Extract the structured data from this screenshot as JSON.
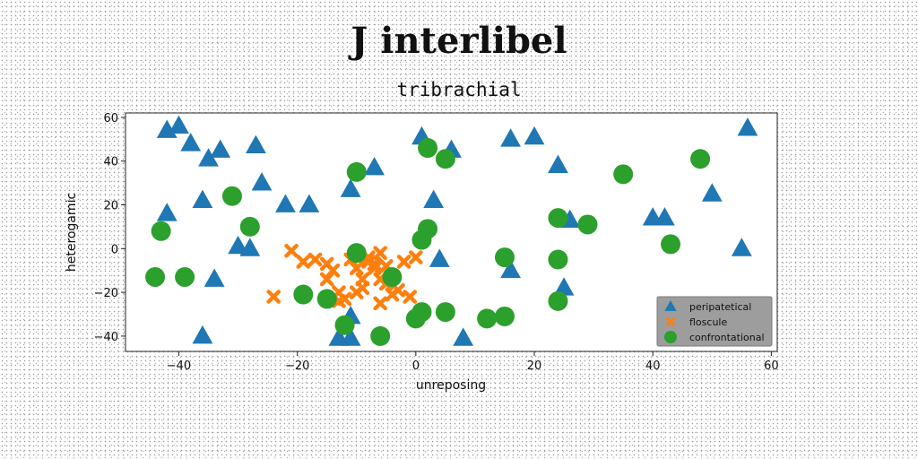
{
  "chart_data": {
    "type": "scatter",
    "title": "J interlibel",
    "subtitle": "tribrachial",
    "xlabel": "unreposing",
    "ylabel": "heterogamic",
    "xlim": [
      -49,
      61
    ],
    "ylim": [
      -47,
      62
    ],
    "xticks": [
      -40,
      -20,
      0,
      20,
      40,
      60
    ],
    "yticks": [
      -40,
      -20,
      0,
      20,
      40,
      60
    ],
    "grid": false,
    "legend_position": "lower-right",
    "series": [
      {
        "name": "peripatetical",
        "marker": "triangle",
        "color": "#1f77b4",
        "points": [
          [
            -42,
            54
          ],
          [
            -40,
            56
          ],
          [
            -38,
            48
          ],
          [
            -35,
            41
          ],
          [
            -33,
            45
          ],
          [
            -27,
            47
          ],
          [
            -26,
            30
          ],
          [
            -22,
            20
          ],
          [
            -18,
            20
          ],
          [
            -36,
            22
          ],
          [
            -42,
            16
          ],
          [
            -30,
            1
          ],
          [
            -28,
            0
          ],
          [
            -34,
            -14
          ],
          [
            -36,
            -40
          ],
          [
            -13,
            -41
          ],
          [
            -11,
            -41
          ],
          [
            -11,
            -31
          ],
          [
            -11,
            27
          ],
          [
            -7,
            37
          ],
          [
            1,
            51
          ],
          [
            6,
            45
          ],
          [
            3,
            22
          ],
          [
            4,
            -5
          ],
          [
            8,
            -41
          ],
          [
            16,
            50
          ],
          [
            20,
            51
          ],
          [
            24,
            38
          ],
          [
            26,
            13
          ],
          [
            16,
            -10
          ],
          [
            25,
            -18
          ],
          [
            40,
            14
          ],
          [
            42,
            14
          ],
          [
            50,
            25
          ],
          [
            55,
            0
          ],
          [
            56,
            55
          ]
        ]
      },
      {
        "name": "floscule",
        "marker": "x",
        "color": "#ff7f0e",
        "points": [
          [
            -24,
            -22
          ],
          [
            -21,
            -1
          ],
          [
            -19,
            -6
          ],
          [
            -17,
            -5
          ],
          [
            -15,
            -7
          ],
          [
            -15,
            -14
          ],
          [
            -14,
            -10
          ],
          [
            -13,
            -20
          ],
          [
            -13,
            -24
          ],
          [
            -12,
            -23
          ],
          [
            -11,
            -5
          ],
          [
            -10,
            -9
          ],
          [
            -10,
            -20
          ],
          [
            -9,
            -18
          ],
          [
            -8,
            -6
          ],
          [
            -8,
            -4
          ],
          [
            -7,
            -7
          ],
          [
            -7,
            -9
          ],
          [
            -6,
            -2
          ],
          [
            -6,
            -14
          ],
          [
            -6,
            -25
          ],
          [
            -5,
            -16
          ],
          [
            -5,
            -8
          ],
          [
            -4,
            -21
          ],
          [
            -3,
            -19
          ],
          [
            -2,
            -6
          ],
          [
            -1,
            -22
          ],
          [
            0,
            -4
          ],
          [
            -9,
            -14
          ]
        ]
      },
      {
        "name": "confrontational",
        "marker": "circle",
        "color": "#2ca02c",
        "points": [
          [
            -44,
            -13
          ],
          [
            -43,
            8
          ],
          [
            -39,
            -13
          ],
          [
            -31,
            24
          ],
          [
            -28,
            10
          ],
          [
            -19,
            -21
          ],
          [
            -15,
            -23
          ],
          [
            -12,
            -35
          ],
          [
            -10,
            35
          ],
          [
            -10,
            -2
          ],
          [
            -6,
            -40
          ],
          [
            -4,
            -13
          ],
          [
            0,
            -32
          ],
          [
            1,
            -29
          ],
          [
            1,
            4
          ],
          [
            2,
            46
          ],
          [
            2,
            9
          ],
          [
            5,
            41
          ],
          [
            5,
            -29
          ],
          [
            12,
            -32
          ],
          [
            15,
            -31
          ],
          [
            15,
            -4
          ],
          [
            24,
            14
          ],
          [
            24,
            -5
          ],
          [
            24,
            -24
          ],
          [
            29,
            11
          ],
          [
            35,
            34
          ],
          [
            43,
            2
          ],
          [
            48,
            41
          ]
        ]
      }
    ]
  }
}
